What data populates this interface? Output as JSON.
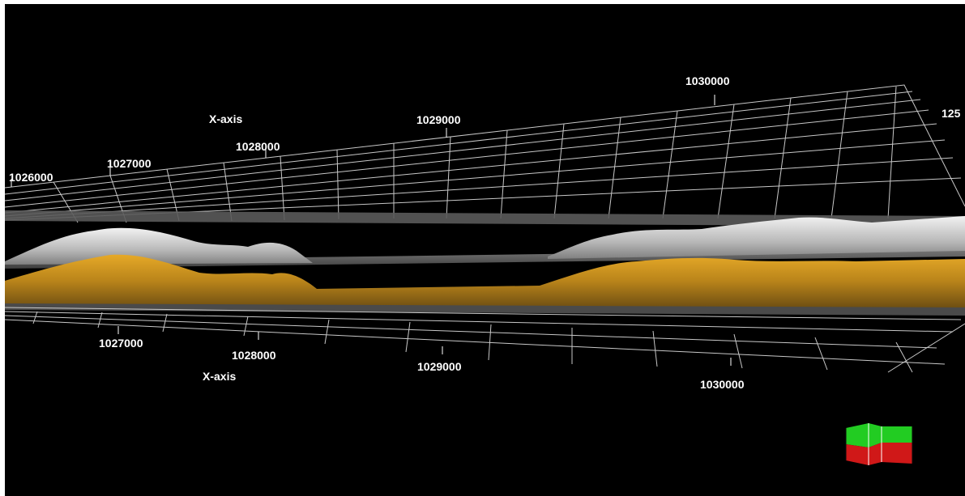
{
  "viewer": {
    "top_axis_title": "X-axis",
    "bottom_axis_title": "X-axis",
    "top_ticks": [
      "1026000",
      "1027000",
      "1028000",
      "1029000",
      "1030000"
    ],
    "bottom_ticks": [
      "1027000",
      "1028000",
      "1029000",
      "1030000"
    ],
    "y_tick_partial": "125",
    "colors": {
      "background": "#000000",
      "grid": "#d0d0d0",
      "upper_surface": "#cfcfcf",
      "lower_surface": "#c8921a",
      "orient_top": "#22cc22",
      "orient_bottom": "#d01818"
    }
  }
}
